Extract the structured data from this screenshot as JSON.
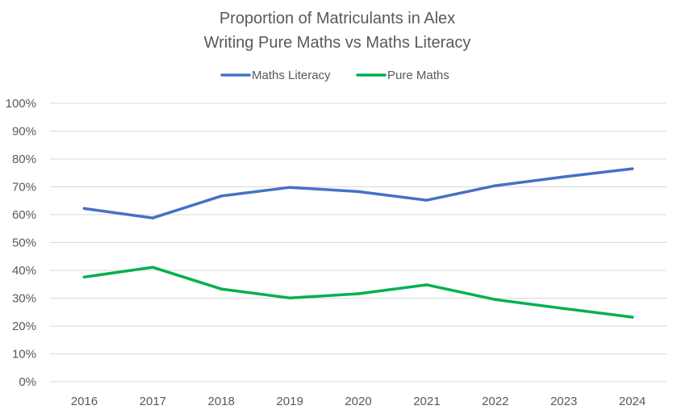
{
  "chart_data": {
    "type": "line",
    "title_lines": [
      "Proportion of Matriculants in Alex",
      "Writing Pure Maths vs Maths Literacy"
    ],
    "categories": [
      "2016",
      "2017",
      "2018",
      "2019",
      "2020",
      "2021",
      "2022",
      "2023",
      "2024"
    ],
    "series": [
      {
        "name": "Maths Literacy",
        "color": "#4472c4",
        "values": [
          62.2,
          58.8,
          66.7,
          69.8,
          68.3,
          65.2,
          70.4,
          73.6,
          76.5
        ]
      },
      {
        "name": "Pure Maths",
        "color": "#00b050",
        "values": [
          37.6,
          41.1,
          33.3,
          30.1,
          31.6,
          34.8,
          29.5,
          26.3,
          23.2
        ]
      }
    ],
    "y_ticks": [
      "0%",
      "10%",
      "20%",
      "30%",
      "40%",
      "50%",
      "60%",
      "70%",
      "80%",
      "90%",
      "100%"
    ],
    "ylim": [
      0,
      100
    ],
    "grid": true,
    "legend_position": "top"
  }
}
